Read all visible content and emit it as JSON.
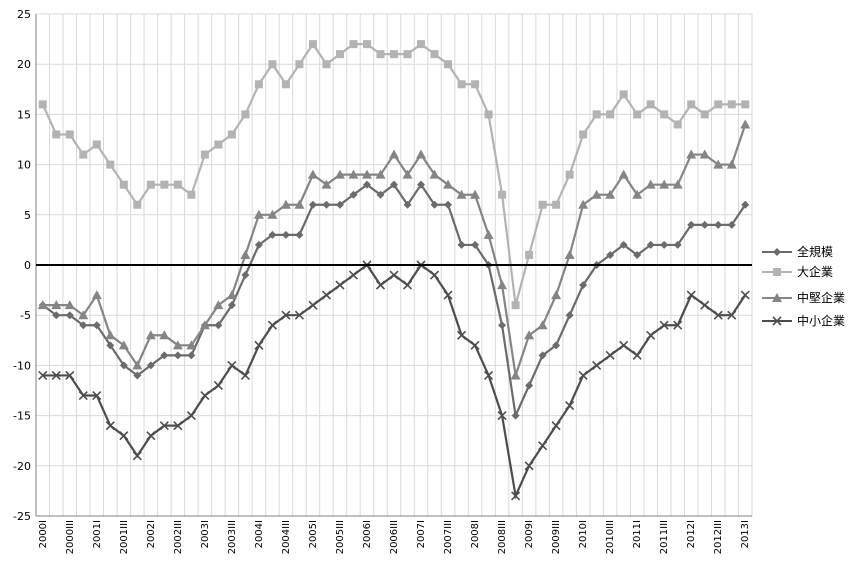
{
  "chart_data": {
    "type": "line",
    "ylim": [
      -25,
      25
    ],
    "ytick_step": 5,
    "grid": true,
    "legend_position": "right",
    "x_ticks": [
      "2000I",
      "2000III",
      "2001I",
      "2001III",
      "2002I",
      "2002III",
      "2003I",
      "2003III",
      "2004I",
      "2004III",
      "2005I",
      "2005III",
      "2006I",
      "2006III",
      "2007I",
      "2007III",
      "2008I",
      "2008III",
      "2009I",
      "2009III",
      "2010I",
      "2010III",
      "2011I",
      "2011III",
      "2012I",
      "2012III",
      "2013I"
    ],
    "series": [
      {
        "name": "全規模",
        "color": "#6b6b6b",
        "marker": "diamond",
        "values": [
          -4,
          -5,
          -5,
          -6,
          -6,
          -8,
          -10,
          -11,
          -10,
          -9,
          -9,
          -9,
          -6,
          -6,
          -4,
          -1,
          2,
          3,
          3,
          3,
          6,
          6,
          6,
          7,
          8,
          7,
          8,
          6,
          8,
          6,
          6,
          2,
          2,
          0,
          -6,
          -15,
          -12,
          -9,
          -8,
          -5,
          -2,
          0,
          1,
          2,
          1,
          2,
          2,
          2,
          4,
          4,
          4,
          4,
          6
        ]
      },
      {
        "name": "大企業",
        "color": "#b3b3b3",
        "marker": "square",
        "values": [
          16,
          13,
          13,
          11,
          12,
          10,
          8,
          6,
          8,
          8,
          8,
          7,
          11,
          12,
          13,
          15,
          18,
          20,
          18,
          20,
          22,
          20,
          21,
          22,
          22,
          21,
          21,
          21,
          22,
          21,
          20,
          18,
          18,
          15,
          7,
          -4,
          1,
          6,
          6,
          9,
          13,
          15,
          15,
          17,
          15,
          16,
          15,
          14,
          16,
          15,
          16,
          16,
          16
        ]
      },
      {
        "name": "中堅企業",
        "color": "#858585",
        "marker": "triangle",
        "values": [
          -4,
          -4,
          -4,
          -5,
          -3,
          -7,
          -8,
          -10,
          -7,
          -7,
          -8,
          -8,
          -6,
          -4,
          -3,
          1,
          5,
          5,
          6,
          6,
          9,
          8,
          9,
          9,
          9,
          9,
          11,
          9,
          11,
          9,
          8,
          7,
          7,
          3,
          -2,
          -11,
          -7,
          -6,
          -3,
          1,
          6,
          7,
          7,
          9,
          7,
          8,
          8,
          8,
          11,
          11,
          10,
          10,
          14
        ]
      },
      {
        "name": "中小企業",
        "color": "#4d4d4d",
        "marker": "x",
        "values": [
          -11,
          -11,
          -11,
          -13,
          -13,
          -16,
          -17,
          -19,
          -17,
          -16,
          -16,
          -15,
          -13,
          -12,
          -10,
          -11,
          -8,
          -6,
          -5,
          -5,
          -4,
          -3,
          -2,
          -1,
          0,
          -2,
          -1,
          -2,
          0,
          -1,
          -3,
          -7,
          -8,
          -11,
          -15,
          -23,
          -20,
          -18,
          -16,
          -14,
          -11,
          -10,
          -9,
          -8,
          -9,
          -7,
          -6,
          -6,
          -3,
          -4,
          -5,
          -5,
          -3
        ]
      }
    ]
  }
}
